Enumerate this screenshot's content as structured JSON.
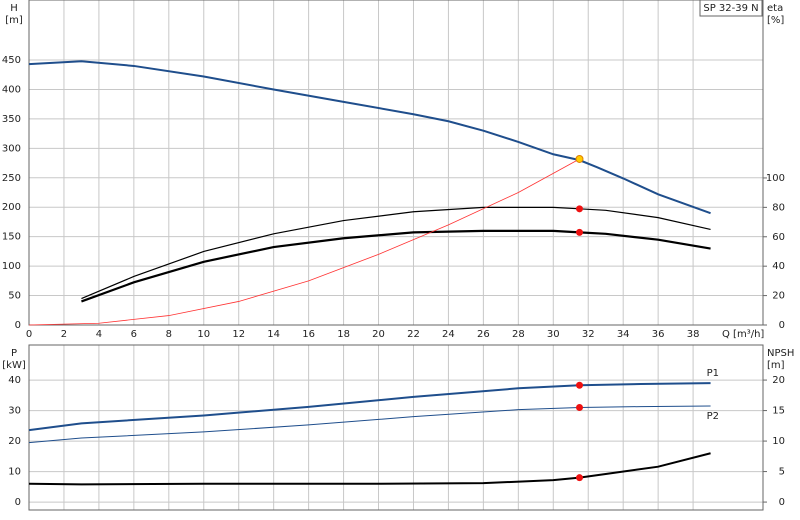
{
  "chart_data": [
    {
      "type": "line",
      "title": "SP 32-39 N",
      "ylabel": "H",
      "yunit": "[m]",
      "y2label": "eta",
      "y2unit": "[%]",
      "xlabel": "Q [m³/h]",
      "xlim": [
        0,
        42
      ],
      "xticks": [
        0,
        2,
        4,
        6,
        8,
        10,
        12,
        14,
        16,
        18,
        20,
        22,
        24,
        26,
        28,
        30,
        32,
        34,
        36,
        38
      ],
      "ylim": [
        0,
        552
      ],
      "yticks": [
        0,
        50,
        100,
        150,
        200,
        250,
        300,
        350,
        400,
        450
      ],
      "y2lim": [
        0,
        221
      ],
      "y2ticks": [
        0,
        20,
        40,
        60,
        80,
        100
      ],
      "grid": true,
      "series": [
        {
          "color": "#1f4e8c",
          "width": 2,
          "x": [
            0,
            3,
            6,
            10,
            14,
            18,
            22,
            24,
            26,
            28,
            30,
            31.5,
            32.5,
            34,
            36,
            39
          ],
          "values": [
            443,
            448,
            440,
            422,
            400,
            379,
            358,
            346,
            330,
            311,
            290,
            280,
            268,
            249,
            222,
            190
          ]
        },
        {
          "color": "#000000",
          "width": 1.2,
          "axis": "y2",
          "x": [
            3,
            6,
            10,
            14,
            18,
            22,
            26,
            30,
            31.5,
            33,
            36,
            39
          ],
          "values": [
            18,
            33,
            50,
            62,
            71,
            77,
            80,
            80,
            79,
            78,
            73,
            65
          ]
        },
        {
          "color": "#000000",
          "width": 2.2,
          "axis": "y2",
          "x": [
            3,
            6,
            10,
            14,
            18,
            22,
            26,
            30,
            31.5,
            33,
            36,
            39
          ],
          "values": [
            16,
            29,
            43,
            53,
            59,
            63,
            64,
            64,
            63,
            62,
            58,
            52
          ]
        },
        {
          "color": "#ff3333",
          "width": 0.8,
          "x": [
            0,
            4,
            8,
            12,
            16,
            20,
            24,
            28,
            31.5
          ],
          "values": [
            0,
            3,
            16,
            40,
            75,
            120,
            170,
            225,
            282
          ]
        }
      ],
      "points": [
        {
          "x": 31.5,
          "y": 282,
          "color": "#ffcc00"
        },
        {
          "x": 31.5,
          "y": 79,
          "axis": "y2",
          "color": "#ee1111"
        },
        {
          "x": 31.5,
          "y": 63,
          "axis": "y2",
          "color": "#ee1111"
        }
      ]
    },
    {
      "type": "line",
      "ylabel": "P",
      "yunit": "[kW]",
      "y2label": "NPSH",
      "y2unit": "[m]",
      "xlim": [
        0,
        42
      ],
      "ylim": [
        -2.6,
        51.5
      ],
      "yticks": [
        0,
        10,
        20,
        30,
        40
      ],
      "y2lim": [
        -1.3,
        25.75
      ],
      "y2ticks": [
        0,
        5,
        10,
        15,
        20
      ],
      "grid": true,
      "series": [
        {
          "name": "P1",
          "color": "#1f4e8c",
          "width": 2,
          "x": [
            0,
            3,
            10,
            16,
            22,
            28,
            31.5,
            35,
            39
          ],
          "values": [
            23.6,
            25.8,
            28.4,
            31.2,
            34.5,
            37.3,
            38.3,
            38.7,
            39
          ]
        },
        {
          "name": "P2",
          "color": "#1f4e8c",
          "width": 1,
          "x": [
            0,
            3,
            10,
            16,
            22,
            28,
            31.5,
            35,
            39
          ],
          "values": [
            19.5,
            21,
            23,
            25.3,
            28,
            30.3,
            31,
            31.3,
            31.5
          ]
        },
        {
          "color": "#000000",
          "width": 2,
          "axis": "y2",
          "x": [
            0,
            3,
            10,
            20,
            26,
            30,
            31.5,
            33,
            36,
            39
          ],
          "values": [
            3,
            2.9,
            3,
            3,
            3.1,
            3.6,
            4,
            4.6,
            5.8,
            8
          ]
        }
      ],
      "points": [
        {
          "x": 31.5,
          "y": 38.3,
          "color": "#ee1111"
        },
        {
          "x": 31.5,
          "y": 31,
          "color": "#ee1111"
        },
        {
          "x": 31.5,
          "y": 4,
          "axis": "y2",
          "color": "#ee1111"
        }
      ]
    }
  ]
}
